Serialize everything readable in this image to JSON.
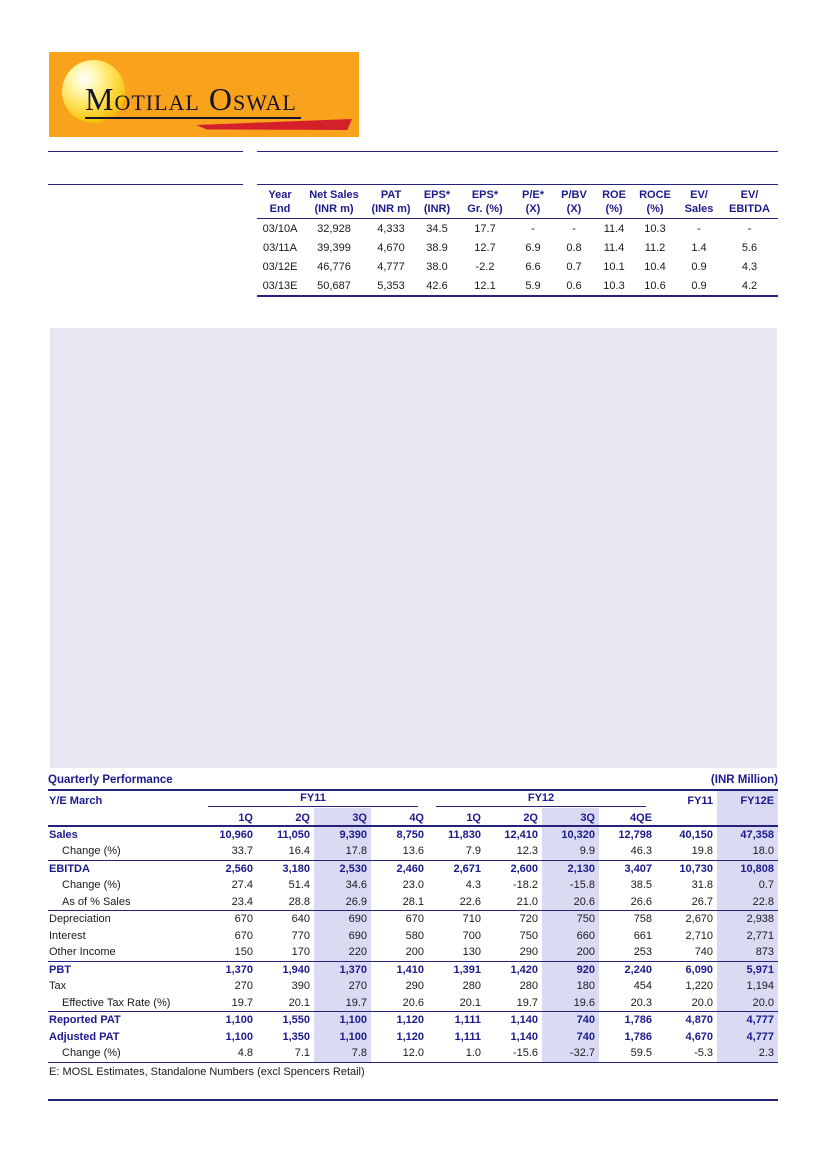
{
  "logo": {
    "text": "Motilal Oswal"
  },
  "colors": {
    "navy_text": "#1b1b8e",
    "rule_navy": "#23237d",
    "logo_orange": "#f9a21c",
    "swoosh_red": "#d3202a",
    "placeholder_lavender": "#e8e6f2",
    "column_highlight": "#dbdaf3"
  },
  "valuation_table": {
    "headers": [
      [
        "Year",
        "End"
      ],
      [
        "Net Sales",
        "(INR m)"
      ],
      [
        "PAT",
        "(INR m)"
      ],
      [
        "EPS*",
        "(INR)"
      ],
      [
        "EPS*",
        "Gr. (%)"
      ],
      [
        "P/E*",
        "(X)"
      ],
      [
        "P/BV",
        "(X)"
      ],
      [
        "ROE",
        "(%)"
      ],
      [
        "ROCE",
        "(%)"
      ],
      [
        "EV/",
        "Sales"
      ],
      [
        "EV/",
        "EBITDA"
      ]
    ],
    "rows": [
      [
        "03/10A",
        "32,928",
        "4,333",
        "34.5",
        "17.7",
        "-",
        "-",
        "11.4",
        "10.3",
        "-",
        "-"
      ],
      [
        "03/11A",
        "39,399",
        "4,670",
        "38.9",
        "12.7",
        "6.9",
        "0.8",
        "11.4",
        "11.2",
        "1.4",
        "5.6"
      ],
      [
        "03/12E",
        "46,776",
        "4,777",
        "38.0",
        "-2.2",
        "6.6",
        "0.7",
        "10.1",
        "10.4",
        "0.9",
        "4.3"
      ],
      [
        "03/13E",
        "50,687",
        "5,353",
        "42.6",
        "12.1",
        "5.9",
        "0.6",
        "10.3",
        "10.6",
        "0.9",
        "4.2"
      ]
    ]
  },
  "quarterly": {
    "title": "Quarterly Performance",
    "unit": "(INR Million)",
    "ye_label": "Y/E March",
    "group1": "FY11",
    "group2": "FY12",
    "annual1": "FY11",
    "annual2": "FY12E",
    "quarter_headers": [
      "1Q",
      "2Q",
      "3Q",
      "4Q",
      "1Q",
      "2Q",
      "3Q",
      "4QE"
    ],
    "highlight_quarter_cols": [
      2,
      6
    ],
    "highlight_value_cols": [
      2,
      6,
      9
    ],
    "rows": [
      {
        "label": "Sales",
        "style": "bold",
        "indent": false,
        "line_below": false,
        "values": [
          "10,960",
          "11,050",
          "9,390",
          "8,750",
          "11,830",
          "12,410",
          "10,320",
          "12,798",
          "40,150",
          "47,358"
        ]
      },
      {
        "label": "Change (%)",
        "style": "normal",
        "indent": true,
        "line_below": true,
        "values": [
          "33.7",
          "16.4",
          "17.8",
          "13.6",
          "7.9",
          "12.3",
          "9.9",
          "46.3",
          "19.8",
          "18.0"
        ]
      },
      {
        "label": "EBITDA",
        "style": "bold",
        "indent": false,
        "line_below": false,
        "values": [
          "2,560",
          "3,180",
          "2,530",
          "2,460",
          "2,671",
          "2,600",
          "2,130",
          "3,407",
          "10,730",
          "10,808"
        ]
      },
      {
        "label": "Change (%)",
        "style": "normal",
        "indent": true,
        "line_below": false,
        "values": [
          "27.4",
          "51.4",
          "34.6",
          "23.0",
          "4.3",
          "-18.2",
          "-15.8",
          "38.5",
          "31.8",
          "0.7"
        ]
      },
      {
        "label": "As of % Sales",
        "style": "normal",
        "indent": true,
        "line_below": true,
        "values": [
          "23.4",
          "28.8",
          "26.9",
          "28.1",
          "22.6",
          "21.0",
          "20.6",
          "26.6",
          "26.7",
          "22.8"
        ]
      },
      {
        "label": "Depreciation",
        "style": "normal",
        "indent": false,
        "line_below": false,
        "values": [
          "670",
          "640",
          "690",
          "670",
          "710",
          "720",
          "750",
          "758",
          "2,670",
          "2,938"
        ]
      },
      {
        "label": "Interest",
        "style": "normal",
        "indent": false,
        "line_below": false,
        "values": [
          "670",
          "770",
          "690",
          "580",
          "700",
          "750",
          "660",
          "661",
          "2,710",
          "2,771"
        ]
      },
      {
        "label": "Other Income",
        "style": "normal",
        "indent": false,
        "line_below": true,
        "values": [
          "150",
          "170",
          "220",
          "200",
          "130",
          "290",
          "200",
          "253",
          "740",
          "873"
        ]
      },
      {
        "label": "PBT",
        "style": "bold",
        "indent": false,
        "line_below": false,
        "values": [
          "1,370",
          "1,940",
          "1,370",
          "1,410",
          "1,391",
          "1,420",
          "920",
          "2,240",
          "6,090",
          "5,971"
        ]
      },
      {
        "label": "Tax",
        "style": "normal",
        "indent": false,
        "line_below": false,
        "values": [
          "270",
          "390",
          "270",
          "290",
          "280",
          "280",
          "180",
          "454",
          "1,220",
          "1,194"
        ]
      },
      {
        "label": "Effective Tax Rate (%)",
        "style": "normal",
        "indent": true,
        "line_below": true,
        "values": [
          "19.7",
          "20.1",
          "19.7",
          "20.6",
          "20.1",
          "19.7",
          "19.6",
          "20.3",
          "20.0",
          "20.0"
        ]
      },
      {
        "label": "Reported PAT",
        "style": "bold",
        "indent": false,
        "line_below": false,
        "values": [
          "1,100",
          "1,550",
          "1,100",
          "1,120",
          "1,111",
          "1,140",
          "740",
          "1,786",
          "4,870",
          "4,777"
        ]
      },
      {
        "label": "Adjusted PAT",
        "style": "bold",
        "indent": false,
        "line_below": false,
        "values": [
          "1,100",
          "1,350",
          "1,100",
          "1,120",
          "1,111",
          "1,140",
          "740",
          "1,786",
          "4,670",
          "4,777"
        ]
      },
      {
        "label": "Change (%)",
        "style": "normal",
        "indent": true,
        "line_below": true,
        "values": [
          "4.8",
          "7.1",
          "7.8",
          "12.0",
          "1.0",
          "-15.6",
          "-32.7",
          "59.5",
          "-5.3",
          "2.3"
        ]
      }
    ],
    "footnote": "E: MOSL Estimates, Standalone Numbers (excl Spencers Retail)"
  }
}
